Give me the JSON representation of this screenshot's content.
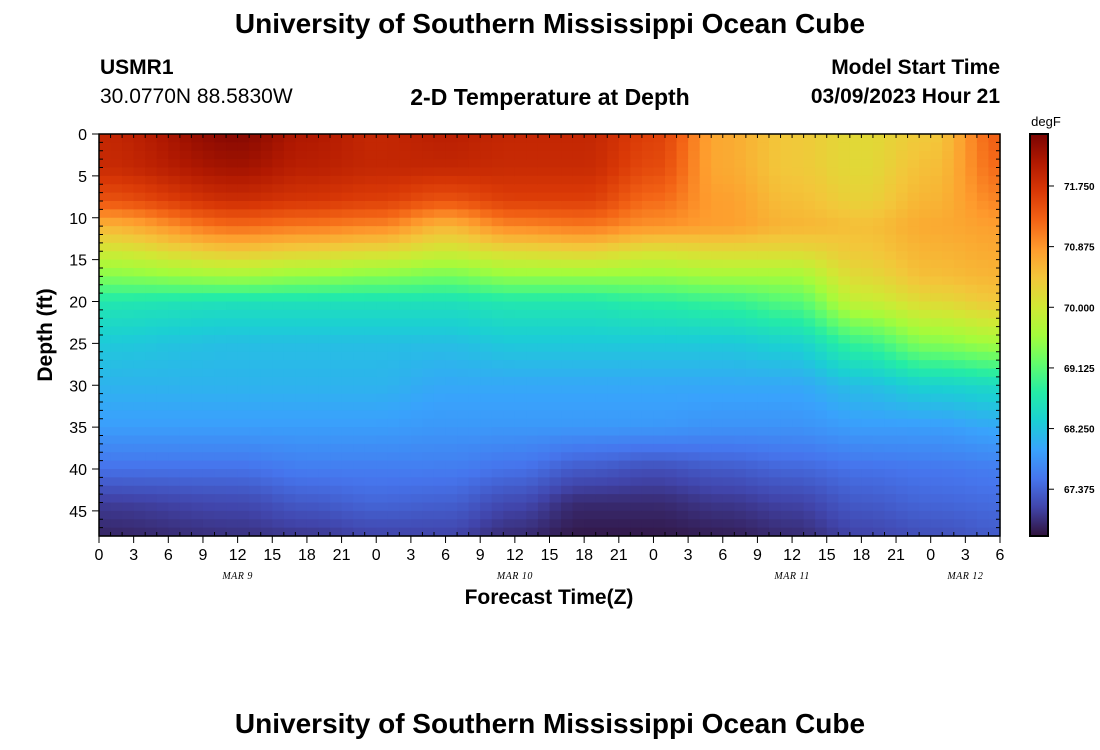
{
  "header": {
    "title": "University of Southern Mississippi Ocean Cube",
    "station_id": "USMR1",
    "station_coords": "30.0770N  88.5830W",
    "plot_title": "2-D Temperature at Depth",
    "model_start_label": "Model Start Time",
    "model_start_value": "03/09/2023 Hour 21"
  },
  "footer": {
    "title": "University of Southern Mississippi Ocean Cube"
  },
  "colors": {
    "palette": [
      "#30123b",
      "#4145ab",
      "#4675ed",
      "#39a2fc",
      "#1bcfd4",
      "#24eca6",
      "#61fc6c",
      "#a4fc3b",
      "#d1e834",
      "#f3c63a",
      "#fe9b2d",
      "#f36315",
      "#d93806",
      "#b11901",
      "#7a0402"
    ]
  },
  "chart_data": {
    "type": "heatmap",
    "title": "2-D Temperature at Depth",
    "xlabel": "Forecast Time(Z)",
    "ylabel": "Depth (ft)",
    "x_hours_from_mar9_00z": [
      0,
      78
    ],
    "x_tick_labels": [
      "0",
      "3",
      "6",
      "9",
      "12",
      "15",
      "18",
      "21",
      "0",
      "3",
      "6",
      "9",
      "12",
      "15",
      "18",
      "21",
      "0",
      "3",
      "6",
      "9",
      "12",
      "15",
      "18",
      "21",
      "0",
      "3",
      "6"
    ],
    "date_labels": [
      {
        "label": "MAR 9",
        "hour": 12
      },
      {
        "label": "MAR 10",
        "hour": 36
      },
      {
        "label": "MAR 11",
        "hour": 60
      },
      {
        "label": "MAR 12",
        "hour": 75
      }
    ],
    "y_range": [
      0,
      48
    ],
    "y_ticks": [
      0,
      5,
      10,
      15,
      20,
      25,
      30,
      35,
      40,
      45
    ],
    "colorbar": {
      "unit": "degF",
      "range": [
        66.7,
        72.5
      ],
      "tick_values": [
        71.75,
        70.875,
        70.0,
        69.125,
        68.25,
        67.375
      ],
      "tick_labels": [
        "71.750",
        "70.875",
        "70.000",
        "69.125",
        "68.250",
        "67.375"
      ]
    },
    "profile_depths": [
      0,
      4,
      8,
      11,
      14,
      17,
      20,
      25,
      30,
      35,
      40,
      44,
      48
    ],
    "profiles": [
      {
        "hour": 0,
        "temps": [
          71.9,
          71.85,
          71.4,
          70.6,
          70.0,
          69.4,
          68.7,
          68.3,
          68.1,
          67.9,
          67.5,
          67.05,
          66.85
        ]
      },
      {
        "hour": 12,
        "temps": [
          72.4,
          72.2,
          71.8,
          71.2,
          70.4,
          69.6,
          68.6,
          68.2,
          68.1,
          67.9,
          67.5,
          67.15,
          66.95
        ]
      },
      {
        "hour": 18,
        "temps": [
          72.1,
          72.0,
          71.7,
          71.1,
          70.3,
          69.5,
          68.6,
          68.2,
          68.1,
          67.9,
          67.6,
          67.3,
          67.0
        ]
      },
      {
        "hour": 24,
        "temps": [
          71.9,
          71.9,
          71.6,
          71.0,
          70.2,
          69.4,
          68.6,
          68.2,
          68.1,
          67.9,
          67.6,
          67.4,
          67.1
        ]
      },
      {
        "hour": 30,
        "temps": [
          72.0,
          71.9,
          71.4,
          70.6,
          70.0,
          69.3,
          68.6,
          68.2,
          68.0,
          67.85,
          67.6,
          67.35,
          67.1
        ]
      },
      {
        "hour": 36,
        "temps": [
          71.9,
          71.85,
          71.6,
          71.0,
          70.2,
          69.5,
          68.7,
          68.3,
          68.0,
          67.85,
          67.5,
          67.15,
          66.9
        ]
      },
      {
        "hour": 42,
        "temps": [
          71.9,
          71.85,
          71.6,
          71.1,
          70.3,
          69.5,
          68.7,
          68.3,
          68.0,
          67.85,
          67.3,
          66.9,
          66.75
        ]
      },
      {
        "hour": 48,
        "temps": [
          71.6,
          71.5,
          71.2,
          70.9,
          70.1,
          69.5,
          68.8,
          68.3,
          68.0,
          67.85,
          67.2,
          66.9,
          66.75
        ]
      },
      {
        "hour": 54,
        "temps": [
          70.7,
          70.7,
          70.8,
          70.8,
          70.2,
          69.6,
          68.9,
          68.3,
          68.0,
          67.8,
          67.3,
          67.0,
          66.8
        ]
      },
      {
        "hour": 60,
        "temps": [
          70.4,
          70.4,
          70.5,
          70.6,
          70.2,
          69.6,
          69.1,
          68.4,
          68.0,
          67.8,
          67.4,
          67.1,
          66.9
        ]
      },
      {
        "hour": 66,
        "temps": [
          70.2,
          70.2,
          70.3,
          70.5,
          70.4,
          70.2,
          69.9,
          68.9,
          68.2,
          67.9,
          67.5,
          67.3,
          67.1
        ]
      },
      {
        "hour": 72,
        "temps": [
          70.4,
          70.5,
          70.6,
          70.7,
          70.6,
          70.5,
          70.2,
          69.4,
          68.4,
          67.9,
          67.55,
          67.4,
          67.2
        ]
      },
      {
        "hour": 78,
        "temps": [
          71.3,
          71.2,
          71.0,
          70.8,
          70.7,
          70.6,
          70.4,
          69.6,
          68.5,
          68.0,
          67.6,
          67.45,
          67.3
        ]
      }
    ]
  }
}
